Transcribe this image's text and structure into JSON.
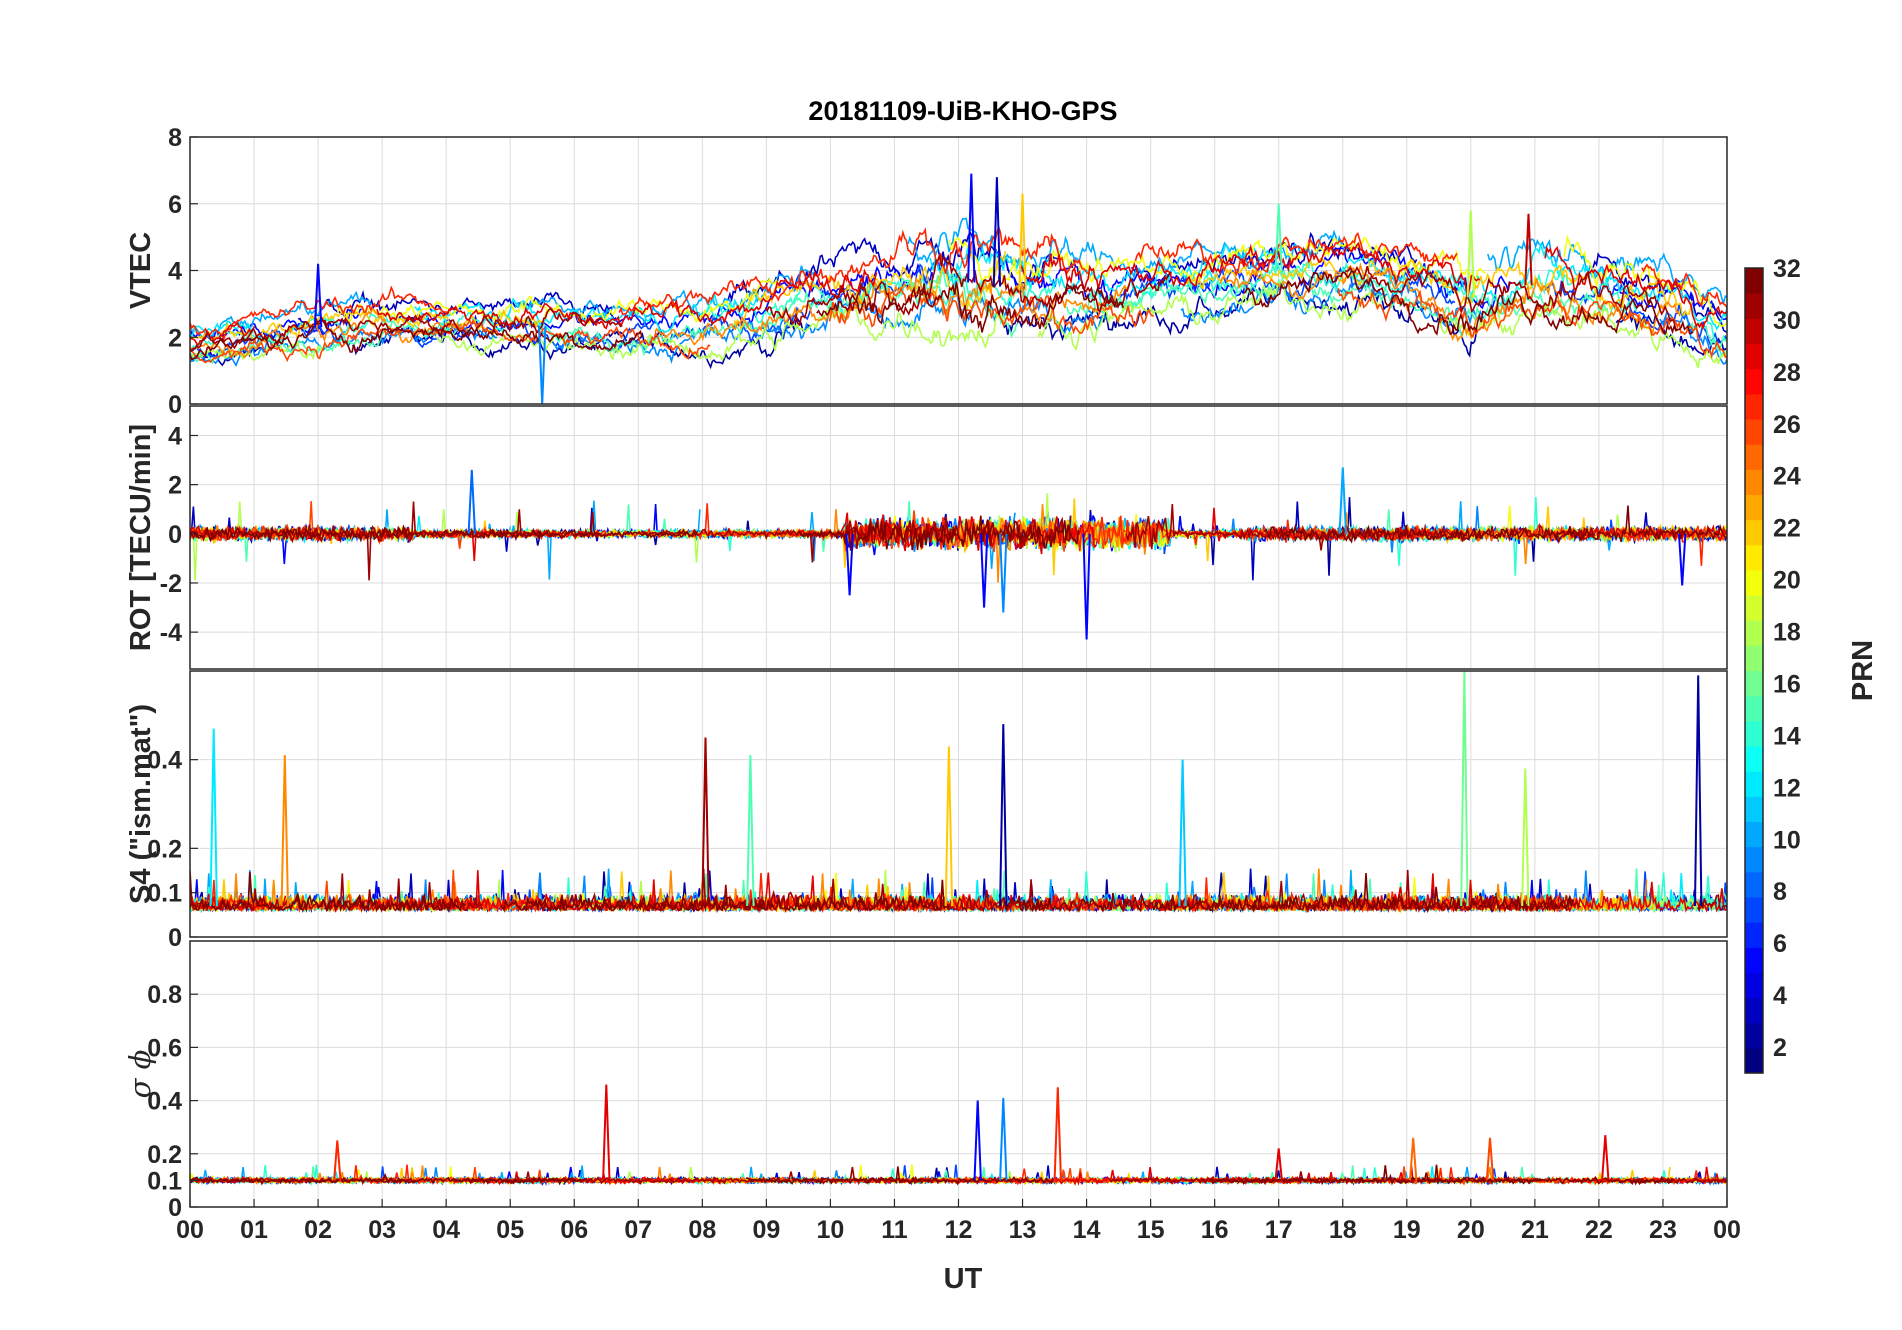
{
  "chart_data": {
    "type": "line",
    "title": "20181109-UiB-KHO-GPS",
    "x_axis": {
      "label": "UT",
      "range": [
        0,
        24
      ],
      "tick_labels": [
        "00",
        "01",
        "02",
        "03",
        "04",
        "05",
        "06",
        "07",
        "08",
        "09",
        "10",
        "11",
        "12",
        "13",
        "14",
        "15",
        "16",
        "17",
        "18",
        "19",
        "20",
        "21",
        "22",
        "23",
        "00"
      ]
    },
    "grid": true,
    "colorbar": {
      "label": "PRN",
      "colormap": "jet",
      "range": [
        1,
        32
      ],
      "ticks": [
        2,
        4,
        6,
        8,
        10,
        12,
        14,
        16,
        18,
        20,
        22,
        24,
        26,
        28,
        30,
        32
      ],
      "placement": "right"
    },
    "panels": [
      {
        "id": "vtec",
        "ylabel": "VTEC",
        "ylim": [
          0,
          8
        ],
        "yticks": [
          0,
          2,
          4,
          6,
          8
        ],
        "ytick_labels": [
          "0",
          "2",
          "4",
          "6",
          "8"
        ],
        "trend": {
          "x": [
            0,
            1,
            2,
            3,
            4,
            5,
            6,
            7,
            8,
            9,
            10,
            11,
            12,
            13,
            14,
            15,
            16,
            17,
            18,
            19,
            20,
            21,
            22,
            23,
            24
          ],
          "mean": [
            1.8,
            2.0,
            2.3,
            2.5,
            2.5,
            2.4,
            2.3,
            2.3,
            2.4,
            2.7,
            3.3,
            3.7,
            3.7,
            3.4,
            3.4,
            3.5,
            3.6,
            3.9,
            4.0,
            3.7,
            3.2,
            3.6,
            3.4,
            3.0,
            2.3
          ],
          "spread": [
            0.5,
            0.5,
            0.6,
            0.6,
            0.5,
            0.6,
            0.6,
            0.6,
            0.7,
            0.8,
            0.9,
            1.1,
            1.2,
            1.1,
            0.9,
            0.8,
            0.8,
            0.8,
            0.8,
            0.8,
            1.0,
            1.0,
            0.9,
            0.9,
            0.8
          ]
        },
        "peak_values": [
          {
            "x": 2.0,
            "y": 4.2,
            "prn": 5
          },
          {
            "x": 5.5,
            "y": 0.0,
            "prn": 9
          },
          {
            "x": 12.2,
            "y": 6.9,
            "prn": 5
          },
          {
            "x": 12.6,
            "y": 6.8,
            "prn": 3
          },
          {
            "x": 13.0,
            "y": 6.3,
            "prn": 22
          },
          {
            "x": 17.0,
            "y": 6.0,
            "prn": 15
          },
          {
            "x": 20.0,
            "y": 5.8,
            "prn": 18
          },
          {
            "x": 20.9,
            "y": 5.7,
            "prn": 30
          }
        ]
      },
      {
        "id": "rot",
        "ylabel": "ROT [TECU/min]",
        "ylim": [
          -5.5,
          5.2
        ],
        "yticks": [
          -4,
          -2,
          0,
          2,
          4
        ],
        "ytick_labels": [
          "-4",
          "-2",
          "0",
          "2",
          "4"
        ],
        "peak_values": [
          {
            "x": 4.4,
            "y": 2.6,
            "prn": 8
          },
          {
            "x": 10.3,
            "y": -2.5,
            "prn": 5
          },
          {
            "x": 12.4,
            "y": -3.0,
            "prn": 5
          },
          {
            "x": 12.7,
            "y": -3.2,
            "prn": 9
          },
          {
            "x": 14.0,
            "y": -4.3,
            "prn": 5
          },
          {
            "x": 18.0,
            "y": 2.7,
            "prn": 10
          },
          {
            "x": 23.3,
            "y": -2.1,
            "prn": 5
          }
        ]
      },
      {
        "id": "s4",
        "ylabel": "S4 (\"ism.mat\")",
        "ylim": [
          0,
          0.6
        ],
        "yticks": [
          0,
          0.1,
          0.2,
          0.4
        ],
        "ytick_labels": [
          "0",
          "0.1",
          "0.2",
          "0.4"
        ],
        "baseline": 0.07,
        "spikes": [
          {
            "x": 0.37,
            "y": 0.47,
            "prn": 12
          },
          {
            "x": 1.48,
            "y": 0.41,
            "prn": 24
          },
          {
            "x": 8.05,
            "y": 0.45,
            "prn": 31
          },
          {
            "x": 8.75,
            "y": 0.41,
            "prn": 15
          },
          {
            "x": 11.85,
            "y": 0.43,
            "prn": 22
          },
          {
            "x": 12.7,
            "y": 0.48,
            "prn": 2
          },
          {
            "x": 15.5,
            "y": 0.4,
            "prn": 11
          },
          {
            "x": 19.9,
            "y": 0.6,
            "prn": 16
          },
          {
            "x": 20.85,
            "y": 0.38,
            "prn": 18
          },
          {
            "x": 23.55,
            "y": 0.59,
            "prn": 2
          }
        ]
      },
      {
        "id": "sigma_phi",
        "ylabel": "σ ϕ",
        "ylim": [
          0,
          1.0
        ],
        "yticks": [
          0,
          0.1,
          0.2,
          0.4,
          0.6,
          0.8
        ],
        "ytick_labels": [
          "0",
          "0.1",
          "0.2",
          "0.4",
          "0.6",
          "0.8"
        ],
        "baseline": 0.1,
        "spikes": [
          {
            "x": 6.5,
            "y": 0.46,
            "prn": 29
          },
          {
            "x": 12.3,
            "y": 0.4,
            "prn": 5
          },
          {
            "x": 12.7,
            "y": 0.41,
            "prn": 9
          },
          {
            "x": 13.55,
            "y": 0.45,
            "prn": 27
          },
          {
            "x": 2.3,
            "y": 0.25,
            "prn": 27
          },
          {
            "x": 17.0,
            "y": 0.22,
            "prn": 29
          },
          {
            "x": 19.1,
            "y": 0.26,
            "prn": 25
          },
          {
            "x": 20.3,
            "y": 0.26,
            "prn": 26
          },
          {
            "x": 22.1,
            "y": 0.27,
            "prn": 29
          }
        ]
      }
    ]
  }
}
